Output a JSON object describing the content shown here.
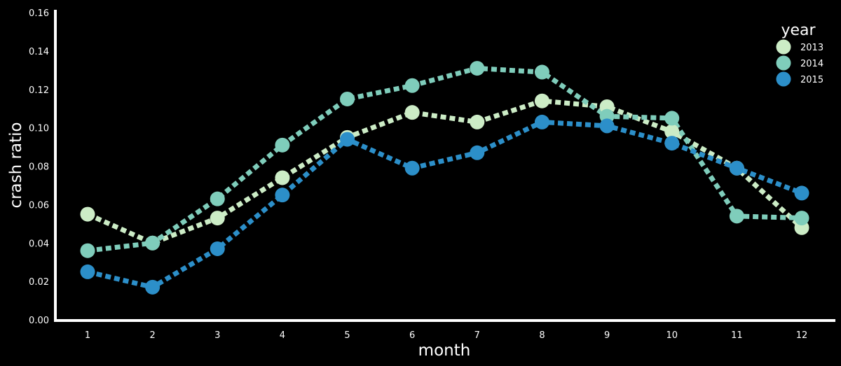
{
  "chart_data": {
    "type": "line",
    "xlabel": "month",
    "ylabel": "crash ratio",
    "x": [
      1,
      2,
      3,
      4,
      5,
      6,
      7,
      8,
      9,
      10,
      11,
      12
    ],
    "x_ticks": [
      "1",
      "2",
      "3",
      "4",
      "5",
      "6",
      "7",
      "8",
      "9",
      "10",
      "11",
      "12"
    ],
    "y_ticks": [
      "0.00",
      "0.02",
      "0.04",
      "0.06",
      "0.08",
      "0.10",
      "0.12",
      "0.14",
      "0.16"
    ],
    "xlim": [
      0.5,
      12.5
    ],
    "ylim": [
      0,
      0.16
    ],
    "grid": false,
    "line_style": "dotted",
    "legend": {
      "title": "year",
      "placement": "top-right"
    },
    "series": [
      {
        "name": "2013",
        "color": "#ccecc6",
        "values": [
          0.055,
          0.04,
          0.053,
          0.074,
          0.095,
          0.108,
          0.103,
          0.114,
          0.111,
          0.098,
          0.079,
          0.048
        ]
      },
      {
        "name": "2014",
        "color": "#7fcdbb",
        "values": [
          0.036,
          0.04,
          0.063,
          0.091,
          0.115,
          0.122,
          0.131,
          0.129,
          0.106,
          0.105,
          0.054,
          0.053
        ]
      },
      {
        "name": "2015",
        "color": "#2c8fc9",
        "values": [
          0.025,
          0.017,
          0.037,
          0.065,
          0.094,
          0.079,
          0.087,
          0.103,
          0.101,
          0.092,
          0.079,
          0.066
        ]
      }
    ]
  }
}
